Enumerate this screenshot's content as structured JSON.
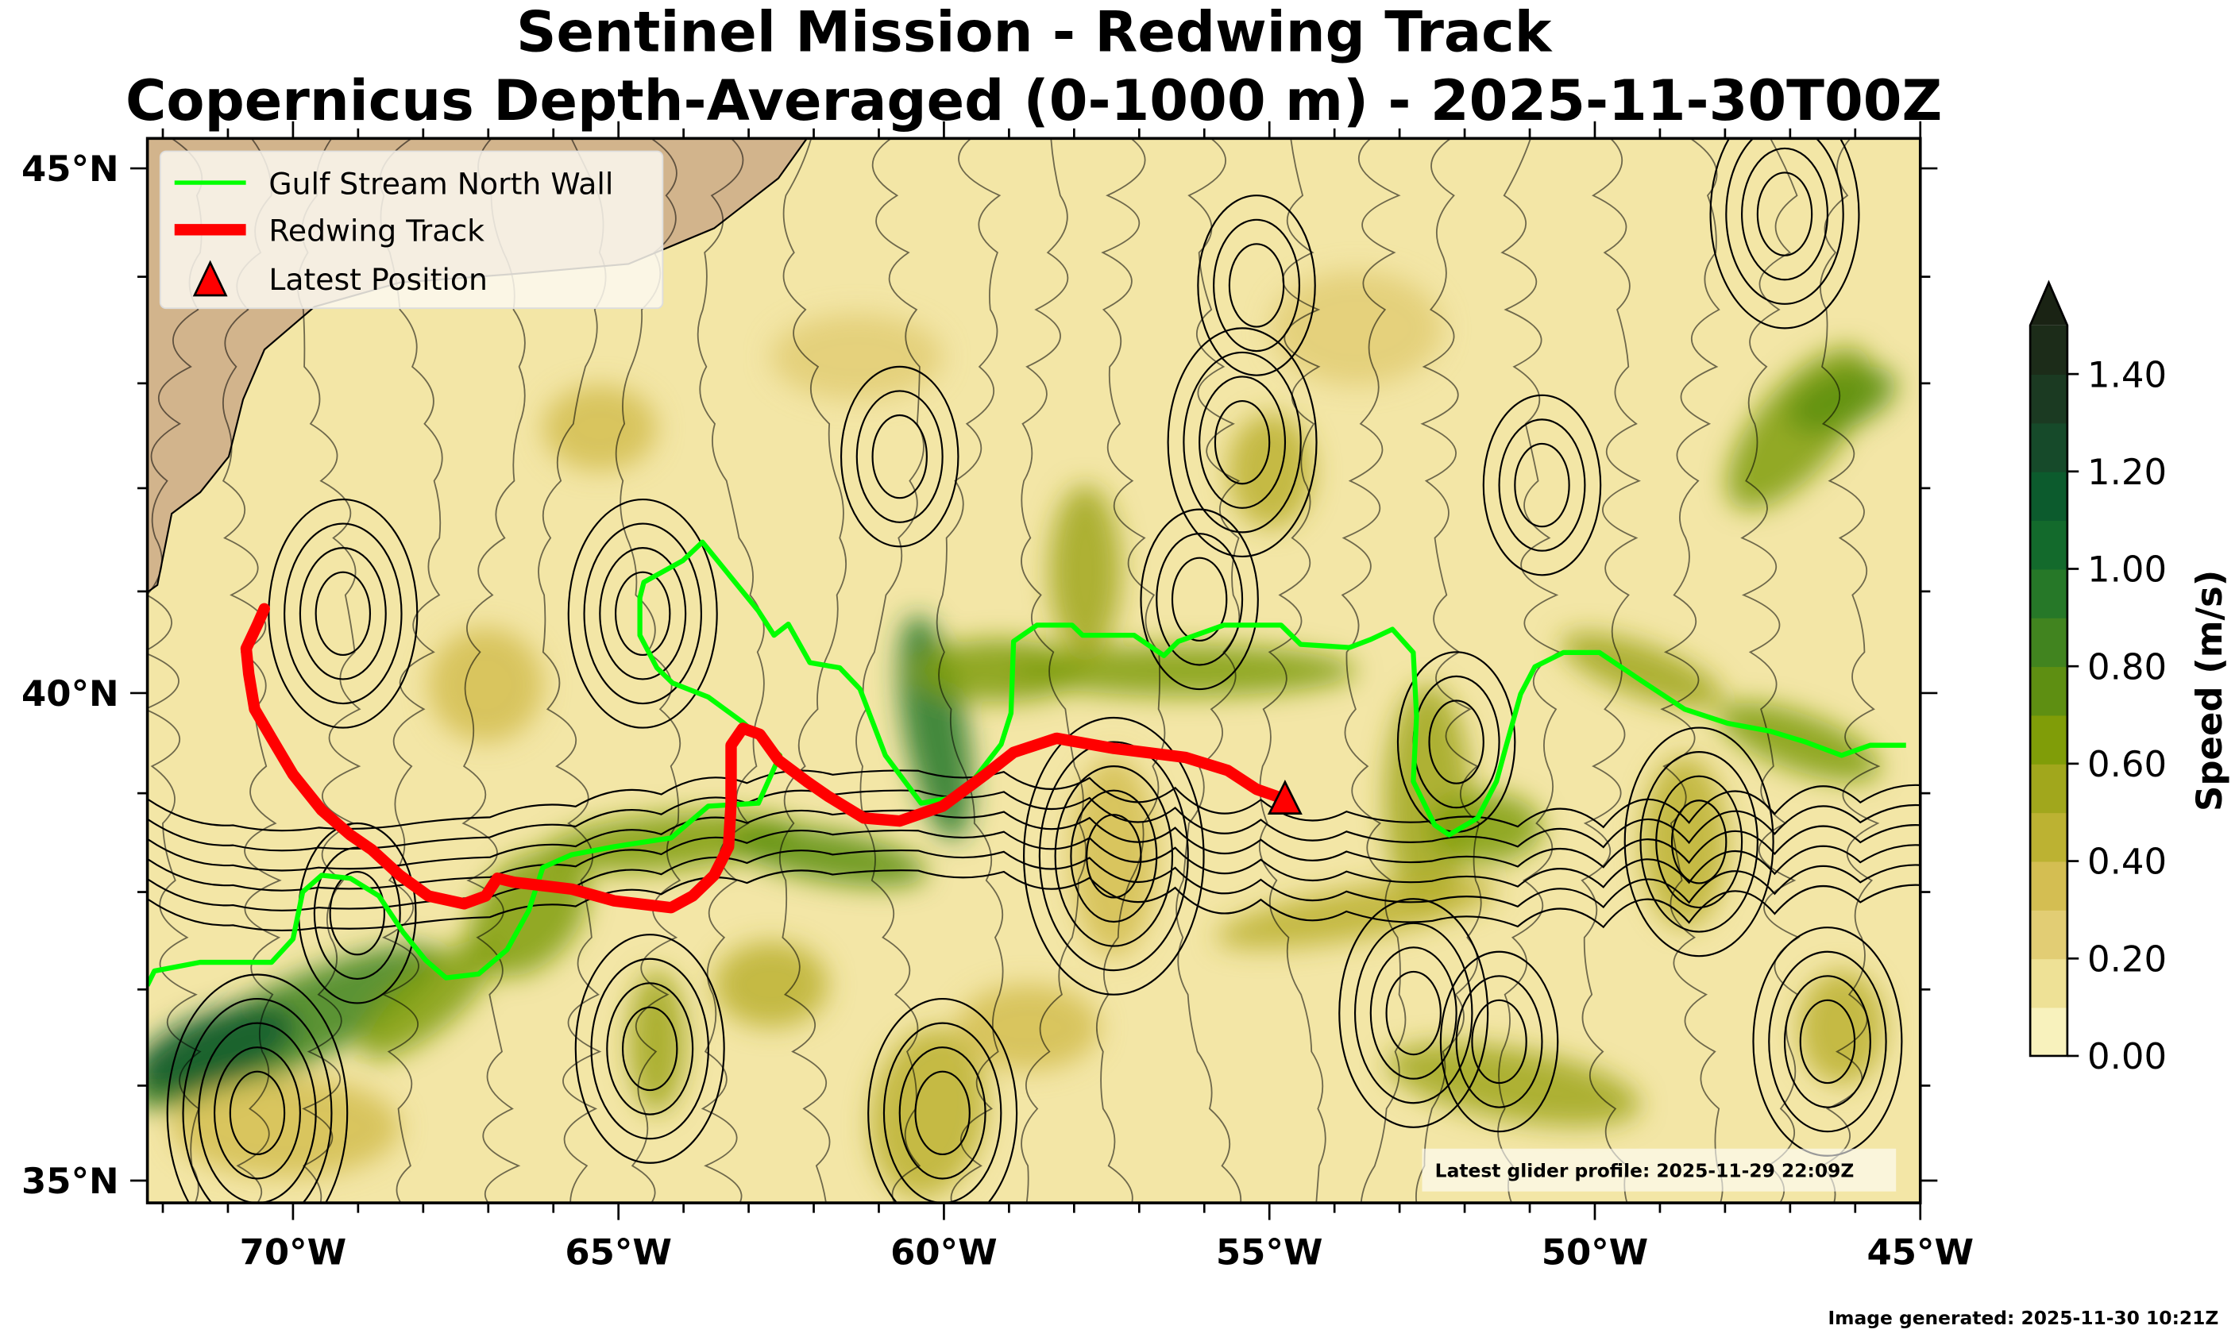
{
  "title": {
    "line1": "Sentinel Mission - Redwing Track",
    "line2": "Copernicus Depth-Averaged (0-1000 m) - 2025-11-30T00Z"
  },
  "legend": {
    "items": [
      {
        "label": "Gulf Stream North Wall",
        "color": "#00ff00"
      },
      {
        "label": "Redwing Track",
        "color": "#ff0000"
      },
      {
        "label": "Latest Position",
        "color": "#ff0000"
      }
    ]
  },
  "annotation": "Latest glider profile: 2025-11-29 22:09Z",
  "footer": "Image generated: 2025-11-30 10:21Z",
  "colorbar": {
    "label": "Speed (m/s)",
    "ticks": [
      "0.00",
      "0.20",
      "0.40",
      "0.60",
      "0.80",
      "1.00",
      "1.20",
      "1.40"
    ],
    "tick_values": [
      0,
      0.2,
      0.4,
      0.6,
      0.8,
      1.0,
      1.2,
      1.4
    ],
    "range": [
      0,
      1.5
    ],
    "step": 0.1,
    "extend": "max",
    "colors": [
      "#f8f2bd",
      "#eee196",
      "#e2cd74",
      "#d4be52",
      "#bcb232",
      "#a1a71c",
      "#809d08",
      "#5e8f12",
      "#41841f",
      "#267828",
      "#136a2c",
      "#0c5b2d",
      "#164a2a",
      "#1b3a22",
      "#1c2c19"
    ],
    "over_color": "#1a2314"
  },
  "chart_data": {
    "type": "map",
    "projection": "mercator",
    "lon_range": [
      -72.25,
      -45.0
    ],
    "lat_range": [
      34.8,
      45.3
    ],
    "x_ticks": [
      {
        "value": -70,
        "label": "70°W"
      },
      {
        "value": -65,
        "label": "65°W"
      },
      {
        "value": -60,
        "label": "60°W"
      },
      {
        "value": -55,
        "label": "55°W"
      },
      {
        "value": -50,
        "label": "50°W"
      },
      {
        "value": -45,
        "label": "45°W"
      }
    ],
    "y_ticks": [
      {
        "value": 45,
        "label": "45°N"
      },
      {
        "value": 40,
        "label": "40°N"
      },
      {
        "value": 35,
        "label": "35°N"
      }
    ],
    "field": "depth-averaged current speed (m/s) with streamlines",
    "series": [
      {
        "name": "Gulf Stream North Wall",
        "color": "#00ff00",
        "points": [
          [
            -72.24,
            37.04
          ],
          [
            -72.13,
            37.19
          ],
          [
            -71.43,
            37.28
          ],
          [
            -70.33,
            37.28
          ],
          [
            -70.0,
            37.52
          ],
          [
            -69.85,
            38.0
          ],
          [
            -69.56,
            38.17
          ],
          [
            -69.12,
            38.14
          ],
          [
            -68.68,
            37.96
          ],
          [
            -68.31,
            37.59
          ],
          [
            -67.96,
            37.3
          ],
          [
            -67.65,
            37.12
          ],
          [
            -67.15,
            37.16
          ],
          [
            -66.71,
            37.41
          ],
          [
            -66.38,
            37.81
          ],
          [
            -66.16,
            38.25
          ],
          [
            -65.72,
            38.38
          ],
          [
            -65.07,
            38.46
          ],
          [
            -64.19,
            38.55
          ],
          [
            -63.62,
            38.87
          ],
          [
            -62.85,
            38.9
          ],
          [
            -62.52,
            39.38
          ],
          [
            -63.09,
            39.71
          ],
          [
            -63.62,
            39.96
          ],
          [
            -64.17,
            40.1
          ],
          [
            -64.41,
            40.25
          ],
          [
            -64.67,
            40.57
          ],
          [
            -64.67,
            40.94
          ],
          [
            -64.61,
            41.09
          ],
          [
            -64.01,
            41.3
          ],
          [
            -63.71,
            41.48
          ],
          [
            -62.85,
            40.81
          ],
          [
            -62.61,
            40.57
          ],
          [
            -62.39,
            40.68
          ],
          [
            -62.06,
            40.3
          ],
          [
            -61.6,
            40.25
          ],
          [
            -61.29,
            40.04
          ],
          [
            -60.9,
            39.38
          ],
          [
            -60.35,
            38.9
          ],
          [
            -59.74,
            38.97
          ],
          [
            -59.12,
            39.49
          ],
          [
            -58.97,
            39.8
          ],
          [
            -58.93,
            40.51
          ],
          [
            -58.57,
            40.67
          ],
          [
            -58.03,
            40.67
          ],
          [
            -57.87,
            40.57
          ],
          [
            -57.08,
            40.57
          ],
          [
            -56.62,
            40.37
          ],
          [
            -56.4,
            40.51
          ],
          [
            -55.7,
            40.67
          ],
          [
            -54.82,
            40.67
          ],
          [
            -54.52,
            40.48
          ],
          [
            -53.77,
            40.45
          ],
          [
            -53.44,
            40.53
          ],
          [
            -53.11,
            40.63
          ],
          [
            -52.79,
            40.4
          ],
          [
            -52.74,
            39.77
          ],
          [
            -52.79,
            39.12
          ],
          [
            -52.46,
            38.68
          ],
          [
            -52.24,
            38.58
          ],
          [
            -51.8,
            38.75
          ],
          [
            -51.51,
            39.12
          ],
          [
            -51.36,
            39.48
          ],
          [
            -51.14,
            39.99
          ],
          [
            -50.92,
            40.26
          ],
          [
            -50.48,
            40.4
          ],
          [
            -49.93,
            40.4
          ],
          [
            -49.28,
            40.12
          ],
          [
            -48.62,
            39.84
          ],
          [
            -47.96,
            39.7
          ],
          [
            -47.3,
            39.62
          ],
          [
            -46.75,
            39.51
          ],
          [
            -46.21,
            39.38
          ],
          [
            -45.77,
            39.48
          ],
          [
            -45.22,
            39.48
          ]
        ]
      },
      {
        "name": "Redwing Track",
        "color": "#ff0000",
        "points": [
          [
            -70.44,
            40.83
          ],
          [
            -70.55,
            40.67
          ],
          [
            -70.72,
            40.44
          ],
          [
            -70.68,
            40.19
          ],
          [
            -70.59,
            39.84
          ],
          [
            -70.33,
            39.55
          ],
          [
            -70.0,
            39.19
          ],
          [
            -69.56,
            38.83
          ],
          [
            -69.12,
            38.58
          ],
          [
            -68.79,
            38.43
          ],
          [
            -68.36,
            38.17
          ],
          [
            -67.92,
            37.96
          ],
          [
            -67.37,
            37.88
          ],
          [
            -67.04,
            37.96
          ],
          [
            -66.86,
            38.14
          ],
          [
            -66.6,
            38.1
          ],
          [
            -65.72,
            38.03
          ],
          [
            -65.07,
            37.91
          ],
          [
            -64.19,
            37.84
          ],
          [
            -63.86,
            37.96
          ],
          [
            -63.53,
            38.17
          ],
          [
            -63.31,
            38.46
          ],
          [
            -63.27,
            38.9
          ],
          [
            -63.27,
            39.48
          ],
          [
            -63.09,
            39.65
          ],
          [
            -62.83,
            39.59
          ],
          [
            -62.54,
            39.33
          ],
          [
            -62.11,
            39.12
          ],
          [
            -61.78,
            38.97
          ],
          [
            -61.23,
            38.75
          ],
          [
            -60.68,
            38.72
          ],
          [
            -60.02,
            38.87
          ],
          [
            -59.36,
            39.19
          ],
          [
            -58.93,
            39.41
          ],
          [
            -58.27,
            39.55
          ],
          [
            -57.39,
            39.45
          ],
          [
            -56.29,
            39.36
          ],
          [
            -55.64,
            39.23
          ],
          [
            -55.2,
            39.04
          ],
          [
            -54.76,
            38.94
          ]
        ]
      }
    ],
    "latest_position": [
      -54.76,
      38.94
    ]
  }
}
